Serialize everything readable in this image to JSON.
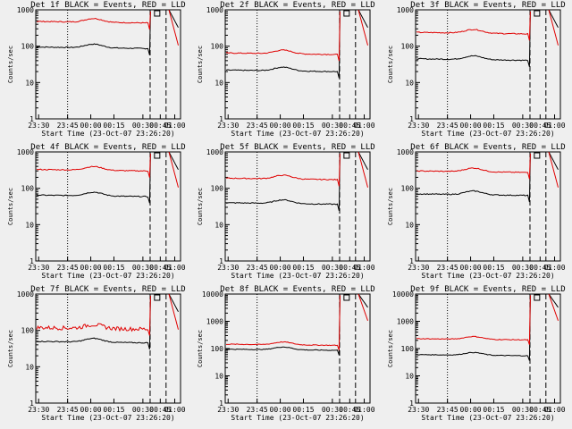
{
  "start_time_label": "Start Time (23-Oct-07 23:26:20)",
  "ylabel": "Counts/sec",
  "x_ticks": [
    "23:30",
    "23:45",
    "00:00",
    "00:15",
    "00:30",
    "00:45",
    "01:00"
  ],
  "colors": {
    "events": "#000000",
    "lld": "#e00000",
    "background": "#efefef"
  },
  "chart_data": [
    {
      "type": "line",
      "title": "Det 1f BLACK = Events, RED = LLD",
      "ylim": [
        1,
        1000
      ],
      "y_ticks": [
        "1",
        "10",
        "100",
        "1000"
      ],
      "series": [
        {
          "name": "Events",
          "color": "#000000",
          "level": 95
        },
        {
          "name": "LLD",
          "color": "#e00000",
          "level": 480
        }
      ]
    },
    {
      "type": "line",
      "title": "Det 2f BLACK = Events, RED = LLD",
      "ylim": [
        1,
        1000
      ],
      "y_ticks": [
        "1",
        "10",
        "100",
        "1000"
      ],
      "series": [
        {
          "name": "Events",
          "color": "#000000",
          "level": 22
        },
        {
          "name": "LLD",
          "color": "#e00000",
          "level": 65
        }
      ]
    },
    {
      "type": "line",
      "title": "Det 3f BLACK = Events, RED = LLD",
      "ylim": [
        1,
        1000
      ],
      "y_ticks": [
        "1",
        "10",
        "100",
        "1000"
      ],
      "series": [
        {
          "name": "Events",
          "color": "#000000",
          "level": 45
        },
        {
          "name": "LLD",
          "color": "#e00000",
          "level": 240
        }
      ]
    },
    {
      "type": "line",
      "title": "Det 4f BLACK = Events, RED = LLD",
      "ylim": [
        1,
        1000
      ],
      "y_ticks": [
        "1",
        "10",
        "100",
        "1000"
      ],
      "series": [
        {
          "name": "Events",
          "color": "#000000",
          "level": 65
        },
        {
          "name": "LLD",
          "color": "#e00000",
          "level": 330
        }
      ]
    },
    {
      "type": "line",
      "title": "Det 5f BLACK = Events, RED = LLD",
      "ylim": [
        1,
        1000
      ],
      "y_ticks": [
        "1",
        "10",
        "100",
        "1000"
      ],
      "series": [
        {
          "name": "Events",
          "color": "#000000",
          "level": 40
        },
        {
          "name": "LLD",
          "color": "#e00000",
          "level": 190
        }
      ]
    },
    {
      "type": "line",
      "title": "Det 6f BLACK = Events, RED = LLD",
      "ylim": [
        1,
        1000
      ],
      "y_ticks": [
        "1",
        "10",
        "100",
        "1000"
      ],
      "series": [
        {
          "name": "Events",
          "color": "#000000",
          "level": 70
        },
        {
          "name": "LLD",
          "color": "#e00000",
          "level": 300
        }
      ]
    },
    {
      "type": "line",
      "title": "Det 7f BLACK = Events, RED = LLD",
      "ylim": [
        1,
        1000
      ],
      "y_ticks": [
        "1",
        "10",
        "100",
        "1000"
      ],
      "series": [
        {
          "name": "Events",
          "color": "#000000",
          "level": 50
        },
        {
          "name": "LLD",
          "color": "#e00000",
          "level": 120
        }
      ]
    },
    {
      "type": "line",
      "title": "Det 8f BLACK = Events, RED = LLD",
      "ylim": [
        1,
        10000
      ],
      "y_ticks": [
        "1",
        "10",
        "100",
        "1000",
        "10000"
      ],
      "series": [
        {
          "name": "Events",
          "color": "#000000",
          "level": 95
        },
        {
          "name": "LLD",
          "color": "#e00000",
          "level": 145
        }
      ]
    },
    {
      "type": "line",
      "title": "Det 9f BLACK = Events, RED = LLD",
      "ylim": [
        1,
        10000
      ],
      "y_ticks": [
        "1",
        "10",
        "100",
        "1000",
        "10000"
      ],
      "series": [
        {
          "name": "Events",
          "color": "#000000",
          "level": 60
        },
        {
          "name": "LLD",
          "color": "#e00000",
          "level": 230
        }
      ]
    }
  ]
}
